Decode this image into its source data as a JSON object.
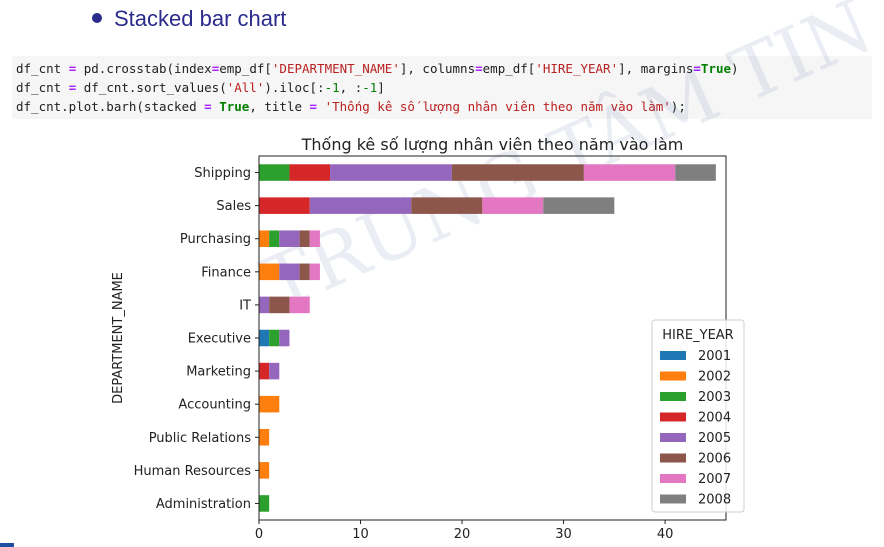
{
  "slide": {
    "heading": "Stacked bar chart",
    "watermark": "TRUNG TÂM TIN HỌC",
    "code_lines": [
      [
        {
          "t": "df_cnt ",
          "c": ""
        },
        {
          "t": "=",
          "c": "op"
        },
        {
          "t": " pd.crosstab(index",
          "c": ""
        },
        {
          "t": "=",
          "c": "op"
        },
        {
          "t": "emp_df[",
          "c": ""
        },
        {
          "t": "'DEPARTMENT_NAME'",
          "c": "str"
        },
        {
          "t": "], columns",
          "c": ""
        },
        {
          "t": "=",
          "c": "op"
        },
        {
          "t": "emp_df[",
          "c": ""
        },
        {
          "t": "'HIRE_YEAR'",
          "c": "str"
        },
        {
          "t": "], margins",
          "c": ""
        },
        {
          "t": "=",
          "c": "op"
        },
        {
          "t": "True",
          "c": "kw"
        },
        {
          "t": ")",
          "c": ""
        }
      ],
      [
        {
          "t": "df_cnt ",
          "c": ""
        },
        {
          "t": "=",
          "c": "op"
        },
        {
          "t": " df_cnt.sort_values(",
          "c": ""
        },
        {
          "t": "'All'",
          "c": "str"
        },
        {
          "t": ").iloc[:",
          "c": ""
        },
        {
          "t": "-1",
          "c": "num"
        },
        {
          "t": ", :",
          "c": ""
        },
        {
          "t": "-1",
          "c": "num"
        },
        {
          "t": "]",
          "c": ""
        }
      ],
      [
        {
          "t": "df_cnt.plot.barh(stacked ",
          "c": ""
        },
        {
          "t": "=",
          "c": "op"
        },
        {
          "t": " ",
          "c": ""
        },
        {
          "t": "True",
          "c": "kw"
        },
        {
          "t": ", title ",
          "c": ""
        },
        {
          "t": "=",
          "c": "op"
        },
        {
          "t": " ",
          "c": ""
        },
        {
          "t": "'Thống kê số lượng nhân viên theo năm vào làm'",
          "c": "str"
        },
        {
          "t": ");",
          "c": ""
        }
      ]
    ]
  },
  "chart_data": {
    "type": "bar",
    "orientation": "horizontal",
    "stacked": true,
    "title": "Thống kê số lượng nhân viên theo năm vào làm",
    "ylabel": "DEPARTMENT_NAME",
    "xlabel": "",
    "xlim": [
      0,
      46
    ],
    "xticks": [
      0,
      10,
      20,
      30,
      40
    ],
    "grid": false,
    "legend": {
      "title": "HIRE_YEAR",
      "placement": "lower-right"
    },
    "categories": [
      "Shipping",
      "Sales",
      "Purchasing",
      "Finance",
      "IT",
      "Executive",
      "Marketing",
      "Accounting",
      "Public Relations",
      "Human Resources",
      "Administration"
    ],
    "series": [
      {
        "name": "2001",
        "color": "#1f77b4",
        "values": [
          0,
          0,
          0,
          0,
          0,
          1,
          0,
          0,
          0,
          0,
          0
        ]
      },
      {
        "name": "2002",
        "color": "#ff7f0e",
        "values": [
          0,
          0,
          1,
          2,
          0,
          0,
          0,
          2,
          1,
          1,
          0
        ]
      },
      {
        "name": "2003",
        "color": "#2ca02c",
        "values": [
          3,
          0,
          1,
          0,
          0,
          1,
          0,
          0,
          0,
          0,
          1
        ]
      },
      {
        "name": "2004",
        "color": "#d62728",
        "values": [
          4,
          5,
          0,
          0,
          0,
          0,
          1,
          0,
          0,
          0,
          0
        ]
      },
      {
        "name": "2005",
        "color": "#9467bd",
        "values": [
          12,
          10,
          2,
          2,
          1,
          1,
          1,
          0,
          0,
          0,
          0
        ]
      },
      {
        "name": "2006",
        "color": "#8c564b",
        "values": [
          13,
          7,
          1,
          1,
          2,
          0,
          0,
          0,
          0,
          0,
          0
        ]
      },
      {
        "name": "2007",
        "color": "#e377c2",
        "values": [
          9,
          6,
          1,
          1,
          2,
          0,
          0,
          0,
          0,
          0,
          0
        ]
      },
      {
        "name": "2008",
        "color": "#7f7f7f",
        "values": [
          4,
          7,
          0,
          0,
          0,
          0,
          0,
          0,
          0,
          0,
          0
        ]
      }
    ]
  }
}
